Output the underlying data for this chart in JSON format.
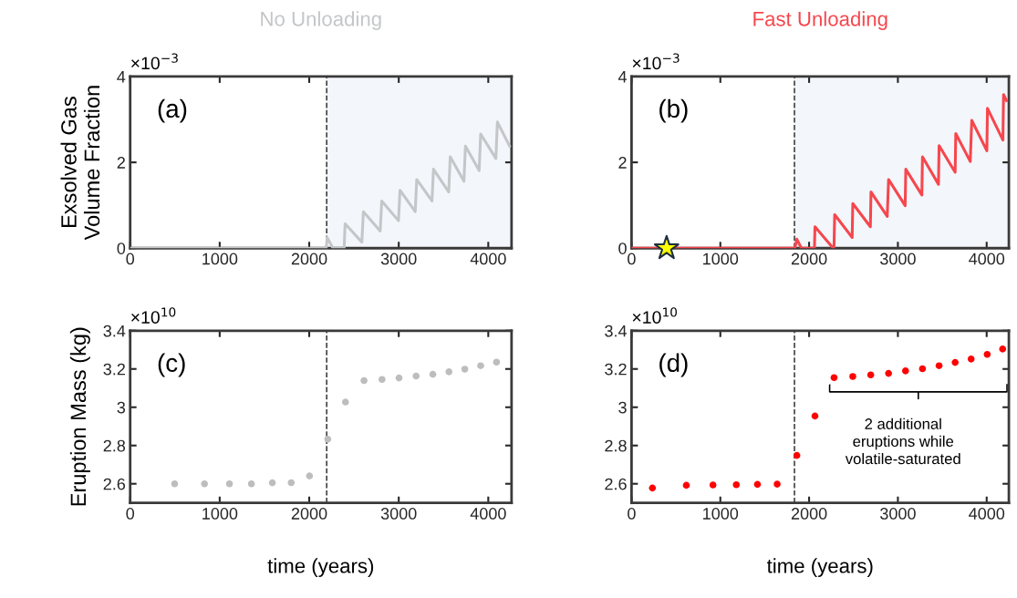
{
  "chart_data": [
    {
      "type": "line",
      "title": "No Unloading",
      "ylabel": "Exsolved Gas\nVolume Fraction",
      "annotations": [
        "(a)",
        "×10$^{−3}$"
      ],
      "xlim": [
        0,
        4260
      ],
      "xticks": [
        0,
        1000,
        2000,
        3000,
        4000
      ],
      "ylim": [
        0,
        4
      ],
      "yticks": [
        0,
        2,
        4
      ],
      "grid": false,
      "legend": false,
      "marker": "none",
      "ref_lines": [
        {
          "axis": "x",
          "value": 2195,
          "color": "#333333",
          "line_style": "dashed"
        }
      ],
      "bands": [
        {
          "axis": "x",
          "from": 2195,
          "to": 4260,
          "color": "#f3f6fb"
        }
      ],
      "series": [
        {
          "color": "#c4c6c8",
          "x": [
            0,
            2190,
            2200,
            2265,
            2390,
            2401,
            2588,
            2605,
            2793,
            2810,
            2997,
            3014,
            3184,
            3201,
            3371,
            3388,
            3558,
            3575,
            3728,
            3745,
            3898,
            3915,
            4085,
            4102,
            4238
          ],
          "values": [
            0,
            0,
            0.25,
            0,
            0,
            0.57,
            0.14,
            0.85,
            0.4,
            1.1,
            0.64,
            1.35,
            0.85,
            1.6,
            1.1,
            1.84,
            1.31,
            2.13,
            1.56,
            2.38,
            1.81,
            2.66,
            2.09,
            2.94,
            2.38
          ]
        }
      ]
    },
    {
      "type": "line",
      "title": "Fast Unloading",
      "annotations": [
        "(b)",
        "×10$^{−3}$"
      ],
      "xlim": [
        0,
        4250
      ],
      "xticks": [
        0,
        1000,
        2000,
        3000,
        4000
      ],
      "ylim": [
        0,
        4
      ],
      "yticks": [
        0,
        2,
        4
      ],
      "grid": false,
      "legend": false,
      "marker": "none",
      "ref_lines": [
        {
          "axis": "x",
          "value": 1835,
          "color": "#333333",
          "line_style": "dashed"
        }
      ],
      "bands": [
        {
          "axis": "x",
          "from": 1835,
          "to": 4250,
          "color": "#f3f6fb"
        }
      ],
      "series": [
        {
          "color": "#f5474d",
          "x": [
            0,
            1840,
            1862,
            1913,
            2060,
            2066,
            2271,
            2280,
            2288,
            2485,
            2492,
            2690,
            2697,
            2880,
            2895,
            3082,
            3089,
            3270,
            3277,
            3457,
            3464,
            3645,
            3652,
            3815,
            3832,
            4002,
            4009,
            4183,
            4190,
            4224
          ],
          "values": [
            0,
            0,
            0.21,
            0,
            0,
            0.5,
            0,
            0,
            0.78,
            0.25,
            1.04,
            0.5,
            1.31,
            0.74,
            1.6,
            0.99,
            1.84,
            1.24,
            2.13,
            1.49,
            2.39,
            1.77,
            2.67,
            2.02,
            2.98,
            2.27,
            3.26,
            2.52,
            3.58,
            3.44
          ]
        },
        {
          "type": "scatter",
          "marker": "star",
          "color": "#ffff00",
          "x": [
            395
          ],
          "values": [
            0
          ]
        }
      ]
    },
    {
      "type": "scatter",
      "ylabel": "Eruption Mass (kg)",
      "xlabel": "time (years)",
      "annotations": [
        "(c)",
        "×10$^{10}$"
      ],
      "xlim": [
        0,
        4260
      ],
      "xticks": [
        0,
        1000,
        2000,
        3000,
        4000
      ],
      "ylim": [
        2.5,
        3.4
      ],
      "yticks": [
        2.6,
        2.8,
        3,
        3.2,
        3.4
      ],
      "grid": false,
      "legend": false,
      "marker": "circle",
      "ref_lines": [
        {
          "axis": "x",
          "value": 2195,
          "color": "#333333",
          "line_style": "dashed"
        }
      ],
      "series": [
        {
          "color": "#bdbdbd",
          "x": [
            497,
            830,
            1109,
            1354,
            1588,
            1799,
            2003,
            2207,
            2405,
            2612,
            2813,
            3003,
            3194,
            3381,
            3561,
            3738,
            3915,
            4092
          ],
          "values": [
            2.6,
            2.6,
            2.6,
            2.6,
            2.605,
            2.606,
            2.641,
            2.833,
            3.027,
            3.139,
            3.145,
            3.153,
            3.163,
            3.172,
            3.185,
            3.199,
            3.217,
            3.236
          ]
        }
      ]
    },
    {
      "type": "scatter",
      "xlabel": "time (years)",
      "annotations": [
        "(d)",
        "×10$^{10}$",
        "2 additional\neruptions while\nvolatile-saturated"
      ],
      "xlim": [
        0,
        4250
      ],
      "xticks": [
        0,
        1000,
        2000,
        3000,
        4000
      ],
      "ylim": [
        2.5,
        3.4
      ],
      "yticks": [
        2.6,
        2.8,
        3,
        3.2,
        3.4
      ],
      "grid": false,
      "legend": false,
      "marker": "circle",
      "ref_lines": [
        {
          "axis": "x",
          "value": 1835,
          "color": "#333333",
          "line_style": "dashed"
        }
      ],
      "series": [
        {
          "color": "#ff0000",
          "x": [
            235,
            617,
            917,
            1180,
            1418,
            1640,
            1862,
            2066,
            2281,
            2492,
            2694,
            2895,
            3086,
            3277,
            3464,
            3645,
            3825,
            4006,
            4180
          ],
          "values": [
            2.578,
            2.592,
            2.594,
            2.595,
            2.597,
            2.598,
            2.748,
            2.954,
            3.155,
            3.161,
            3.169,
            3.177,
            3.19,
            3.201,
            3.217,
            3.234,
            3.252,
            3.276,
            3.304
          ]
        }
      ]
    }
  ]
}
